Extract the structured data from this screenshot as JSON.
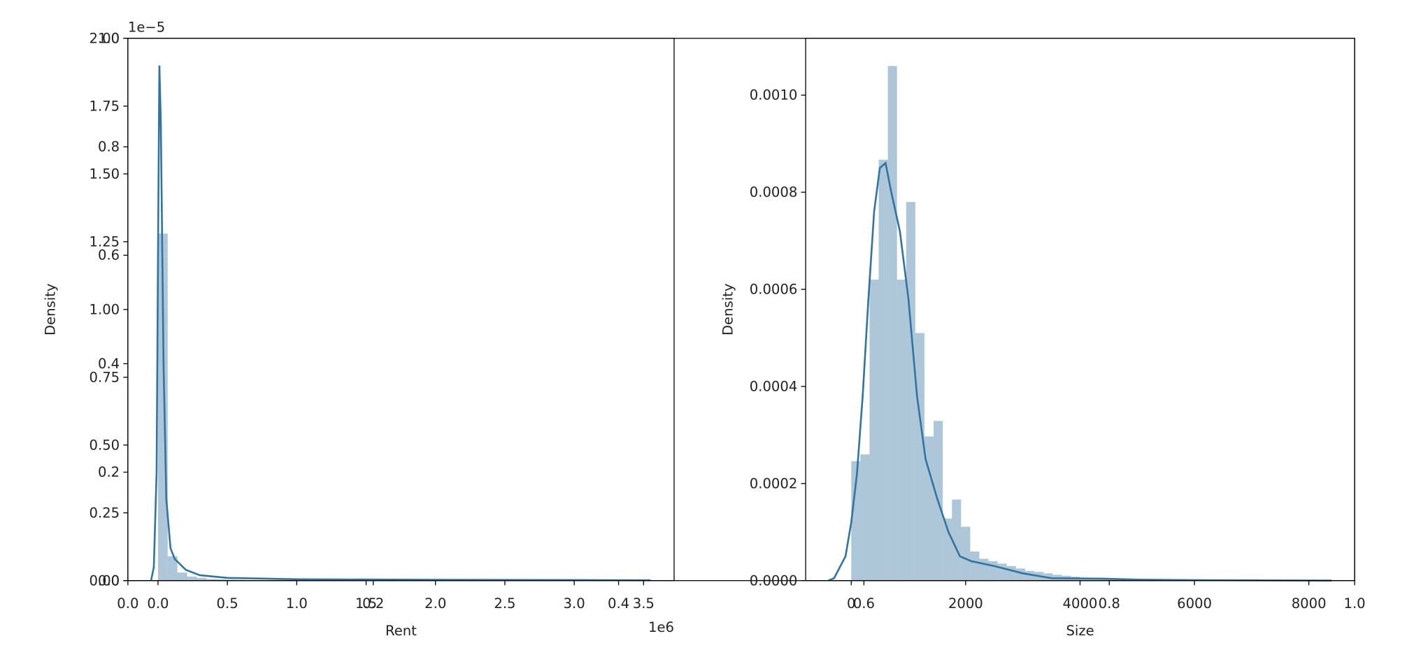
{
  "chart_data": [
    {
      "type": "axes",
      "xlim": [
        0,
        1
      ],
      "ylim": [
        0,
        1
      ],
      "xticks": [
        {
          "value": 0,
          "label": "0.0"
        },
        0.2,
        0.4,
        0.6,
        0.8,
        {
          "value": 1,
          "label": "1.0"
        }
      ],
      "yticks": [
        {
          "value": 0,
          "label": "0.0"
        },
        0.2,
        0.4,
        0.6,
        0.8,
        {
          "value": 1,
          "label": "1.0"
        }
      ]
    },
    {
      "type": "histogram",
      "xlabel": "Rent",
      "ylabel": "Density",
      "x_offset": "1e6",
      "y_offset": "1e−5",
      "color": "#3274a1",
      "xlim": [
        -0.217,
        3.72
      ],
      "ylim": [
        0,
        2
      ],
      "xticks": [
        {
          "value": 0,
          "label": "0.0"
        },
        0.5,
        {
          "value": 1,
          "label": "1.0"
        },
        1.5,
        {
          "value": 2,
          "label": "2.0"
        },
        2.5,
        {
          "value": 3,
          "label": "3.0"
        },
        3.5
      ],
      "yticks": [
        {
          "value": 0,
          "label": "0.00"
        },
        0.25,
        {
          "value": 0.5,
          "label": "0.50"
        },
        0.75,
        {
          "value": 1,
          "label": "1.00"
        },
        1.25,
        {
          "value": 1.5,
          "label": "1.50"
        },
        1.75,
        {
          "value": 2,
          "label": "2.00"
        }
      ],
      "bins": [
        0,
        0.07,
        0.14,
        0.21,
        0.28,
        0.35,
        0.42,
        0.49,
        0.56,
        0.63,
        0.7,
        0.77,
        0.84,
        0.91,
        0.98,
        1.05,
        1.12,
        1.19,
        1.26,
        1.33,
        1.4,
        1.47,
        1.54,
        1.61,
        1.68,
        1.75,
        1.82,
        1.89,
        1.96,
        2.03,
        2.1,
        2.17,
        2.24,
        2.31,
        2.38,
        2.45,
        2.52,
        2.59,
        2.66,
        2.73,
        2.8,
        2.87,
        2.94,
        3.01,
        3.08,
        3.15,
        3.22,
        3.29,
        3.36,
        3.43,
        3.5
      ],
      "values": [
        1.28,
        0.09,
        0.03,
        0.015,
        0.01,
        0.006,
        0.005,
        0.004,
        0.003,
        0.002,
        0.002,
        0.001,
        0.001,
        0.001,
        0.001,
        0.001,
        0.001,
        0,
        0.001,
        0,
        0,
        0.001,
        0,
        0,
        0,
        0,
        0,
        0,
        0,
        0.001,
        0,
        0,
        0,
        0,
        0,
        0,
        0,
        0,
        0,
        0,
        0,
        0,
        0,
        0,
        0,
        0,
        0,
        0,
        0,
        0.001
      ],
      "kde": {
        "x": [
          -0.05,
          -0.03,
          -0.01,
          0,
          0.01,
          0.02,
          0.04,
          0.06,
          0.09,
          0.12,
          0.2,
          0.3,
          0.5,
          1,
          2,
          3,
          3.55
        ],
        "values": [
          0,
          0.05,
          0.4,
          1.2,
          1.9,
          1.7,
          0.8,
          0.3,
          0.12,
          0.08,
          0.04,
          0.02,
          0.01,
          0.005,
          0.003,
          0.002,
          0.001
        ]
      }
    },
    {
      "type": "histogram",
      "xlabel": "Size",
      "ylabel": "Density",
      "color": "#3274a1",
      "xlim": [
        -797,
        8800
      ],
      "ylim": [
        0,
        0.001117
      ],
      "xticks": [
        0,
        2000,
        4000,
        6000,
        8000
      ],
      "yticks": [
        {
          "value": 0,
          "label": "0.0000"
        },
        {
          "value": 0.0002,
          "label": "0.0002"
        },
        {
          "value": 0.0004,
          "label": "0.0004"
        },
        {
          "value": 0.0006,
          "label": "0.0006"
        },
        {
          "value": 0.0008,
          "label": "0.0008"
        },
        {
          "value": 0.001,
          "label": "0.0010"
        }
      ],
      "bins": [
        0,
        160,
        320,
        480,
        640,
        800,
        960,
        1120,
        1280,
        1440,
        1600,
        1760,
        1920,
        2080,
        2240,
        2400,
        2560,
        2720,
        2880,
        3040,
        3200,
        3360,
        3520,
        3680,
        3840,
        4000,
        4160,
        4320,
        4480,
        4640,
        4800,
        4960,
        5120,
        5280,
        5440,
        5600,
        5760,
        5920,
        6080,
        6240,
        6400,
        6560,
        6720,
        6880,
        7040,
        7200,
        7360,
        7520,
        7680,
        7840,
        8000
      ],
      "values": [
        0.000246,
        0.00026,
        0.00062,
        0.000867,
        0.00106,
        0.00062,
        0.00078,
        0.00051,
        0.000297,
        0.000329,
        0.000128,
        0.000167,
        0.000111,
        6e-05,
        4.5e-05,
        4e-05,
        3.5e-05,
        3e-05,
        2.5e-05,
        2e-05,
        1.8e-05,
        1.5e-05,
        1.2e-05,
        1e-05,
        8e-06,
        6e-06,
        5e-06,
        5e-06,
        4e-06,
        3e-06,
        3e-06,
        2e-06,
        2e-06,
        2e-06,
        1e-06,
        1e-06,
        1e-06,
        1e-06,
        1e-06,
        1e-06,
        1e-06,
        1e-06,
        0,
        1e-06,
        0,
        0,
        1e-06,
        0,
        0,
        1e-06
      ],
      "kde": {
        "x": [
          -400,
          -300,
          -100,
          0,
          100,
          200,
          300,
          400,
          500,
          600,
          700,
          850,
          1000,
          1150,
          1300,
          1500,
          1700,
          1900,
          2100,
          2500,
          3000,
          3500,
          4400,
          5000,
          6000,
          8400
        ],
        "values": [
          0,
          5e-06,
          5e-05,
          0.00012,
          0.00022,
          0.00038,
          0.00058,
          0.00076,
          0.00085,
          0.00086,
          0.0008,
          0.00072,
          0.00058,
          0.00038,
          0.00025,
          0.00017,
          0.0001,
          5e-05,
          4e-05,
          3e-05,
          1.5e-05,
          5e-06,
          4e-06,
          2e-06,
          1e-06,
          0
        ]
      }
    }
  ]
}
